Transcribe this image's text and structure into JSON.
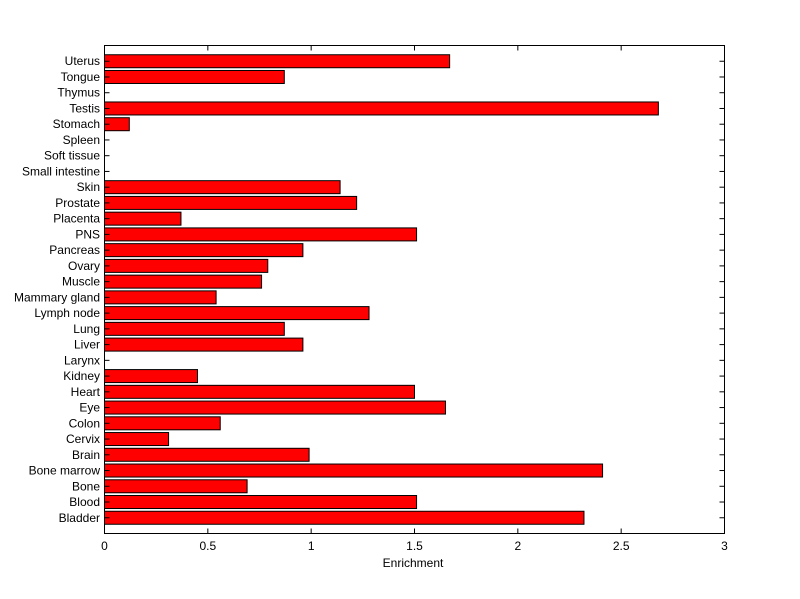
{
  "chart_data": {
    "type": "bar",
    "orientation": "horizontal",
    "title": "",
    "xlabel": "Enrichment",
    "ylabel": "",
    "xlim": [
      0,
      3
    ],
    "xticks": [
      "0",
      "0.5",
      "1",
      "1.5",
      "2",
      "2.5",
      "3"
    ],
    "grid": false,
    "bar_color": "#ff0000",
    "categories": [
      "Bladder",
      "Blood",
      "Bone",
      "Bone marrow",
      "Brain",
      "Cervix",
      "Colon",
      "Eye",
      "Heart",
      "Kidney",
      "Larynx",
      "Liver",
      "Lung",
      "Lymph node",
      "Mammary gland",
      "Muscle",
      "Ovary",
      "Pancreas",
      "PNS",
      "Placenta",
      "Prostate",
      "Skin",
      "Small intestine",
      "Soft tissue",
      "Spleen",
      "Stomach",
      "Testis",
      "Thymus",
      "Tongue",
      "Uterus"
    ],
    "values": [
      2.32,
      1.51,
      0.69,
      2.41,
      0.99,
      0.31,
      0.56,
      1.65,
      1.5,
      0.45,
      0,
      0.96,
      0.87,
      1.28,
      0.54,
      0.76,
      0.79,
      0.96,
      1.51,
      0.37,
      1.22,
      1.14,
      0,
      0,
      0,
      0.12,
      2.68,
      0,
      0.87,
      1.67
    ]
  }
}
